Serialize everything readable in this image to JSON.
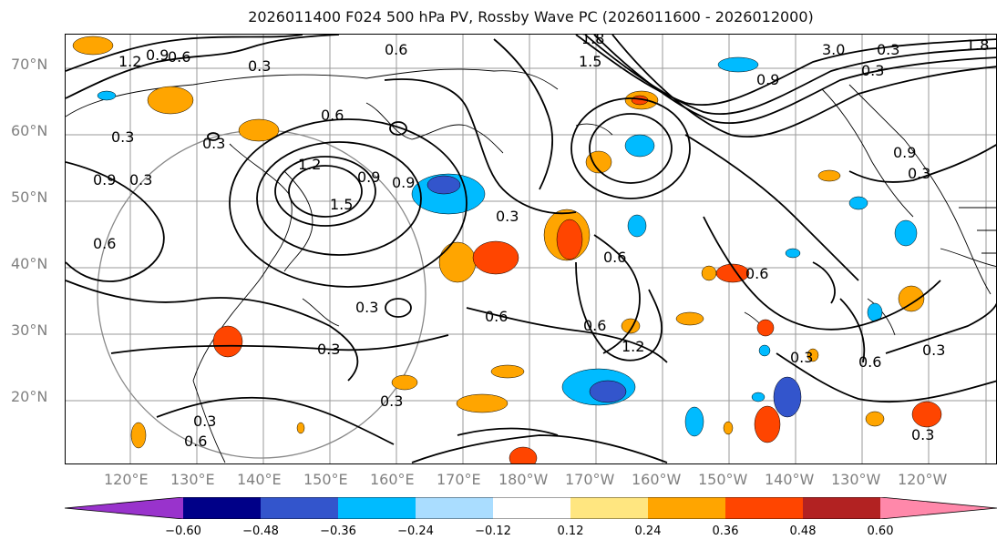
{
  "title": "2026011400 F024 500 hPa PV, Rossby Wave PC (2026011600 - 2026012000)",
  "lat_labels": [
    "70°N",
    "60°N",
    "50°N",
    "40°N",
    "30°N",
    "20°N"
  ],
  "lon_labels": [
    "120°E",
    "130°E",
    "140°E",
    "150°E",
    "160°E",
    "170°E",
    "180°W",
    "170°W",
    "160°W",
    "150°W",
    "140°W",
    "130°W",
    "120°W"
  ],
  "colorbar": {
    "ticks": [
      "−0.60",
      "−0.48",
      "−0.36",
      "−0.24",
      "−0.12",
      "0.12",
      "0.24",
      "0.36",
      "0.48",
      "0.60"
    ],
    "colors": [
      "#9933cc",
      "#000088",
      "#3355cc",
      "#00bbff",
      "#aaddff",
      "#ffffff",
      "#ffe680",
      "#ffa500",
      "#ff4500",
      "#b22222",
      "#ff88aa"
    ]
  },
  "contour_labels": [
    "0.6",
    "0.3",
    "1.2",
    "0.9",
    "0.6",
    "0.3",
    "1.8",
    "1.5",
    "0.6",
    "0.3",
    "0.9",
    "0.3",
    "0.6",
    "1.2",
    "0.9",
    "1.5",
    "0.9",
    "0.3",
    "0.6",
    "0.3",
    "0.6",
    "0.3",
    "0.3",
    "0.6",
    "0.6",
    "1.2",
    "0.3",
    "0.6",
    "0.3",
    "0.3",
    "0.6",
    "0.3",
    "0.9",
    "0.3",
    "0.9",
    "0.3",
    "3.0",
    "1.8",
    "0.3"
  ]
}
